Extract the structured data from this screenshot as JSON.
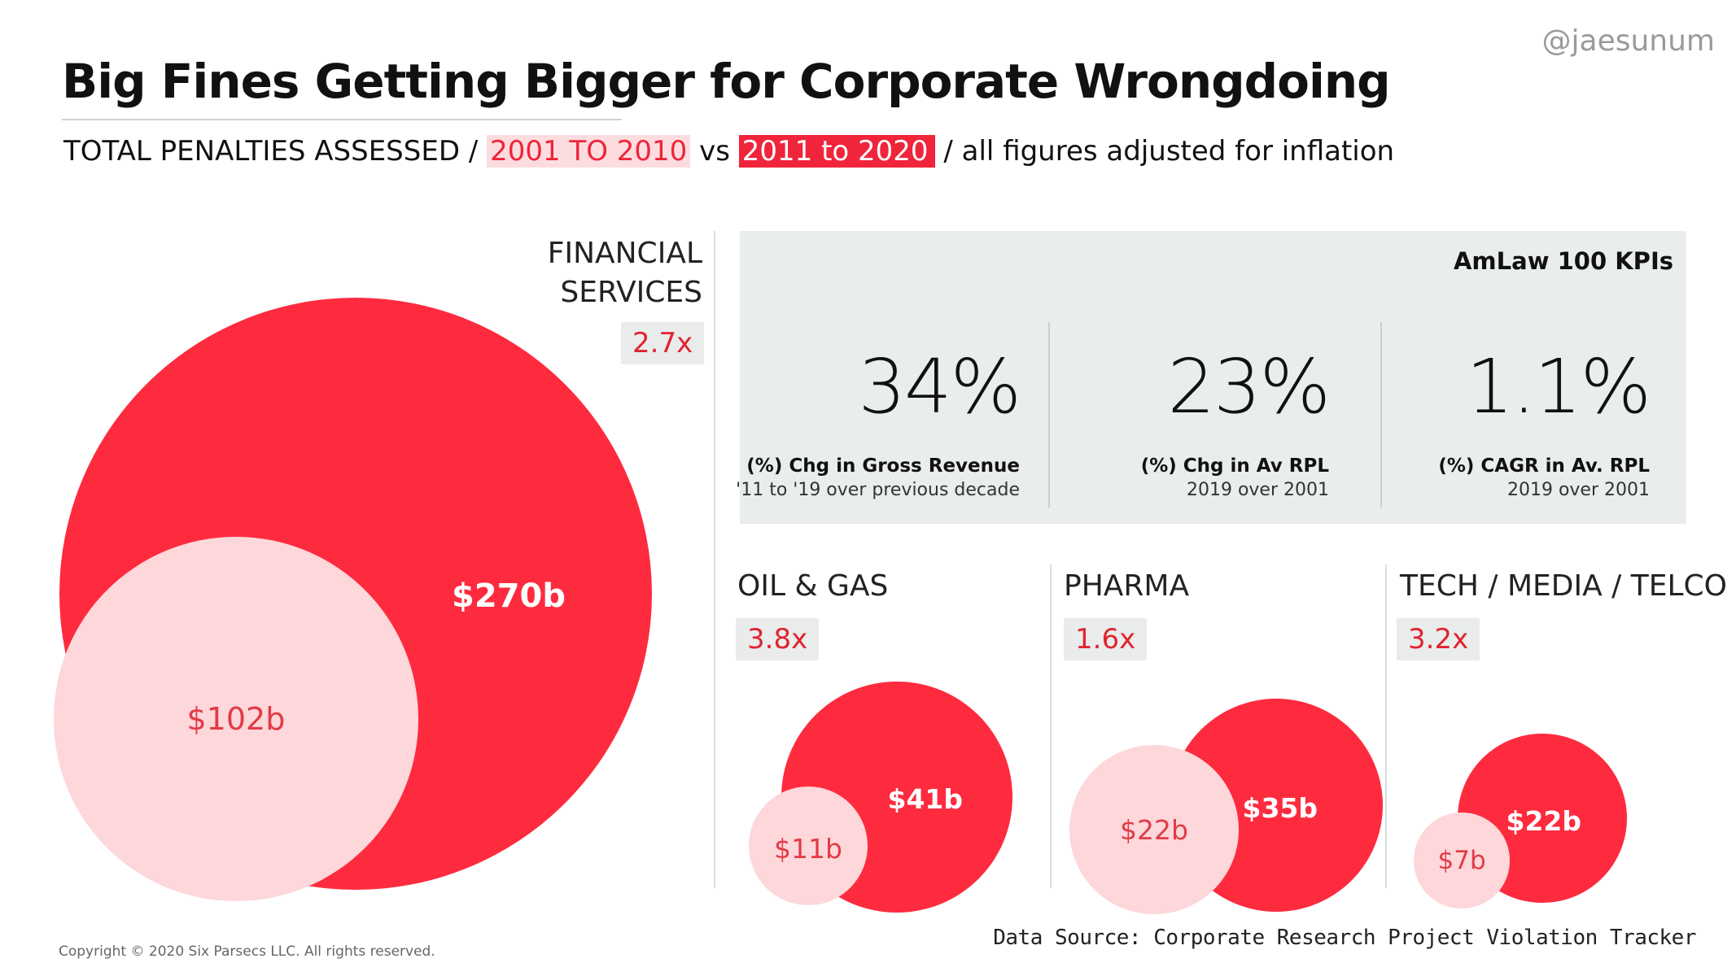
{
  "handle": "@jaesunum",
  "title": "Big Fines Getting Bigger for Corporate Wrongdoing",
  "subtitle": {
    "prefix": "TOTAL PENALTIES ASSESSED /",
    "period1": "2001 TO 2010",
    "vs": "vs",
    "period2": "2011 to 2020",
    "suffix": "/ all figures adjusted for inflation"
  },
  "colors": {
    "period1": "#fdd7da",
    "period2": "#fe2b3f",
    "accent": "#f0243a"
  },
  "chart_data": {
    "type": "bubble",
    "title": "Big Fines Getting Bigger for Corporate Wrongdoing",
    "unit": "$ billions",
    "series": [
      {
        "name": "2001 TO 2010",
        "values": [
          102,
          11,
          22,
          7
        ]
      },
      {
        "name": "2011 to 2020",
        "values": [
          270,
          41,
          35,
          22
        ]
      }
    ],
    "categories": [
      "FINANCIAL SERVICES",
      "OIL & GAS",
      "PHARMA",
      "TECH / MEDIA / TELCO"
    ],
    "sectors": [
      {
        "line1": "FINANCIAL",
        "line2": "SERVICES",
        "multiplier": "2.7x",
        "before": 102,
        "after": 270,
        "before_label": "$102b",
        "after_label": "$270b"
      },
      {
        "line1": "OIL & GAS",
        "line2": "",
        "multiplier": "3.8x",
        "before": 11,
        "after": 41,
        "before_label": "$11b",
        "after_label": "$41b"
      },
      {
        "line1": "PHARMA",
        "line2": "",
        "multiplier": "1.6x",
        "before": 22,
        "after": 35,
        "before_label": "$22b",
        "after_label": "$35b"
      },
      {
        "line1": "TECH / MEDIA / TELCO",
        "line2": "",
        "multiplier": "3.2x",
        "before": 7,
        "after": 22,
        "before_label": "$7b",
        "after_label": "$22b"
      }
    ]
  },
  "kpis": {
    "heading": "AmLaw 100 KPIs",
    "items": [
      {
        "value": "34%",
        "label": "(%) Chg in Gross Revenue",
        "sub": "'11 to '19 over previous decade"
      },
      {
        "value": "23%",
        "label": "(%) Chg in Av RPL",
        "sub": "2019 over 2001"
      },
      {
        "value": "1.1%",
        "label": "(%) CAGR in Av. RPL",
        "sub": "2019 over 2001"
      }
    ]
  },
  "copyright": "Copyright © 2020 Six Parsecs LLC. All rights reserved.",
  "source": "Data Source: Corporate Research Project Violation Tracker"
}
